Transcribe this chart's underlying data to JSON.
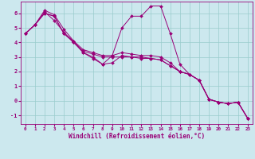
{
  "xlabel": "Windchill (Refroidissement éolien,°C)",
  "bg_color": "#cce8ee",
  "line_color": "#990077",
  "grid_color": "#99cccc",
  "xlim": [
    -0.5,
    23.5
  ],
  "ylim": [
    -1.6,
    6.8
  ],
  "yticks": [
    -1,
    0,
    1,
    2,
    3,
    4,
    5,
    6
  ],
  "xticks": [
    0,
    1,
    2,
    3,
    4,
    5,
    6,
    7,
    8,
    9,
    10,
    11,
    12,
    13,
    14,
    15,
    16,
    17,
    18,
    19,
    20,
    21,
    22,
    23
  ],
  "lines": [
    {
      "x": [
        0,
        1,
        2,
        3,
        4,
        5,
        6,
        7,
        8,
        9,
        10,
        11,
        12,
        13,
        14,
        15,
        16,
        17,
        18,
        19,
        20,
        21,
        22,
        23
      ],
      "y": [
        4.6,
        5.2,
        6.2,
        5.9,
        4.9,
        4.1,
        3.3,
        3.0,
        2.5,
        3.1,
        5.0,
        5.8,
        5.8,
        6.5,
        6.5,
        4.6,
        2.5,
        1.8,
        1.4,
        0.1,
        -0.1,
        -0.2,
        -0.1,
        -1.2
      ]
    },
    {
      "x": [
        0,
        1,
        2,
        3,
        4,
        5,
        6,
        7,
        8,
        9,
        10,
        11,
        12,
        13,
        14,
        15,
        16,
        17,
        18,
        19,
        20,
        21,
        22,
        23
      ],
      "y": [
        4.6,
        5.2,
        6.0,
        5.8,
        4.6,
        4.1,
        3.5,
        3.3,
        3.1,
        3.1,
        3.3,
        3.2,
        3.1,
        3.1,
        3.0,
        2.6,
        2.0,
        1.8,
        1.4,
        0.1,
        -0.1,
        -0.2,
        -0.1,
        -1.2
      ]
    },
    {
      "x": [
        0,
        1,
        2,
        3,
        4,
        5,
        6,
        7,
        8,
        9,
        10,
        11,
        12,
        13,
        14,
        15,
        16,
        17,
        18,
        19,
        20,
        21,
        22,
        23
      ],
      "y": [
        4.6,
        5.2,
        6.0,
        5.8,
        4.6,
        4.0,
        3.4,
        3.2,
        3.0,
        3.0,
        3.0,
        3.0,
        3.0,
        2.9,
        2.8,
        2.4,
        2.0,
        1.8,
        1.4,
        0.1,
        -0.1,
        -0.2,
        -0.1,
        -1.2
      ]
    },
    {
      "x": [
        0,
        1,
        2,
        3,
        4,
        5,
        6,
        7,
        8,
        9,
        10,
        11,
        12,
        13,
        14,
        15,
        16,
        17,
        18,
        19,
        20,
        21,
        22,
        23
      ],
      "y": [
        4.6,
        5.2,
        6.1,
        5.5,
        4.7,
        4.0,
        3.3,
        2.9,
        2.5,
        2.6,
        3.1,
        3.0,
        2.9,
        2.9,
        2.8,
        2.4,
        2.0,
        1.8,
        1.4,
        0.1,
        -0.1,
        -0.2,
        -0.1,
        -1.2
      ]
    }
  ]
}
